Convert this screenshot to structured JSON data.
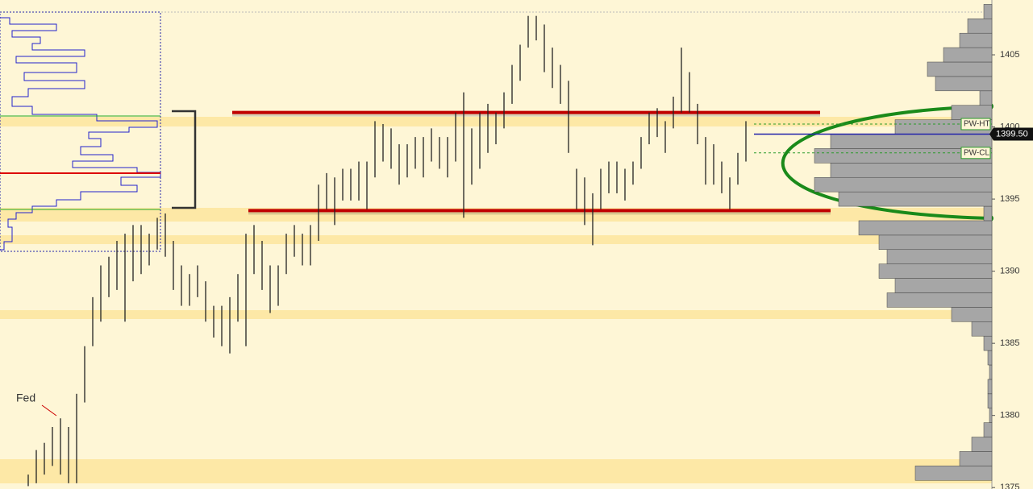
{
  "chart_data": {
    "type": "ohlc",
    "ylim": [
      1374.9,
      1408.8
    ],
    "yticks": [
      1375,
      1380,
      1385,
      1390,
      1395,
      1400,
      1405
    ],
    "last_price": {
      "value": 1399.5,
      "label": "1399.50"
    },
    "levels": [
      {
        "name": "PW-HT",
        "value": 1400.2
      },
      {
        "name": "PW-CL",
        "value": 1398.2
      }
    ],
    "range_lines": [
      {
        "value": 1401.0,
        "color": "#c00000"
      },
      {
        "value": 1394.2,
        "color": "#c00000"
      }
    ],
    "annotations": [
      {
        "text": "Fed"
      }
    ],
    "bar_color": "#222222",
    "high": [
      1375.9,
      1377.6,
      1378.1,
      1379.2,
      1379.8,
      1379.2,
      1381.5,
      1384.8,
      1388.2,
      1390.4,
      1391.0,
      1392.1,
      1392.6,
      1393.2,
      1393.2,
      1392.6,
      1393.7,
      1394.0,
      1392.1,
      1390.4,
      1389.8,
      1390.4,
      1389.3,
      1387.6,
      1387.6,
      1388.2,
      1389.8,
      1392.6,
      1393.2,
      1392.1,
      1390.4,
      1390.4,
      1392.6,
      1393.2,
      1392.6,
      1393.2,
      1396.0,
      1396.8,
      1396.5,
      1397.1,
      1397.1,
      1397.6,
      1397.6,
      1400.4,
      1400.2,
      1399.9,
      1398.8,
      1398.8,
      1399.3,
      1399.3,
      1399.9,
      1399.3,
      1399.3,
      1401.0,
      1402.4,
      1399.9,
      1401.0,
      1401.6,
      1401.0,
      1402.4,
      1404.3,
      1405.7,
      1407.7,
      1407.7,
      1407.1,
      1405.5,
      1404.3,
      1403.2,
      1397.1,
      1396.5,
      1395.4,
      1397.1,
      1397.6,
      1397.6,
      1397.1,
      1397.6,
      1399.3,
      1401.0,
      1401.3,
      1400.4,
      1402.1,
      1405.5,
      1403.8,
      1401.6,
      1399.3,
      1398.8,
      1397.6,
      1396.5,
      1398.2,
      1400.4
    ],
    "low": [
      1375.1,
      1375.3,
      1375.9,
      1376.5,
      1375.9,
      1375.3,
      1375.3,
      1380.9,
      1384.8,
      1386.5,
      1388.2,
      1388.7,
      1386.5,
      1389.3,
      1389.8,
      1390.4,
      1391.5,
      1391.0,
      1388.7,
      1387.6,
      1387.6,
      1388.2,
      1386.5,
      1385.4,
      1384.8,
      1384.3,
      1386.5,
      1384.8,
      1389.8,
      1388.7,
      1387.1,
      1387.6,
      1389.8,
      1391.0,
      1390.4,
      1390.4,
      1392.1,
      1394.3,
      1393.2,
      1394.9,
      1394.9,
      1394.9,
      1394.3,
      1396.5,
      1397.6,
      1397.1,
      1396.0,
      1396.5,
      1397.1,
      1396.5,
      1397.6,
      1397.1,
      1396.5,
      1397.6,
      1393.7,
      1396.0,
      1397.1,
      1398.2,
      1398.8,
      1399.9,
      1401.6,
      1403.2,
      1405.5,
      1406.0,
      1403.8,
      1402.7,
      1401.6,
      1398.2,
      1394.3,
      1393.2,
      1391.8,
      1394.3,
      1395.4,
      1395.4,
      1394.9,
      1396.0,
      1397.1,
      1398.8,
      1399.3,
      1398.2,
      1399.9,
      1401.0,
      1401.0,
      1398.8,
      1396.0,
      1396.0,
      1395.4,
      1394.3,
      1396.0,
      1397.6
    ],
    "volume_profile": {
      "color": "#a6a6a6",
      "prices": [
        1376,
        1377,
        1378,
        1379,
        1380,
        1381,
        1382,
        1383,
        1384,
        1385,
        1386,
        1387,
        1388,
        1389,
        1390,
        1391,
        1392,
        1393,
        1394,
        1395,
        1396,
        1397,
        1398,
        1399,
        1400,
        1401,
        1402,
        1403,
        1404,
        1405,
        1406,
        1407,
        1408
      ],
      "volumes": [
        95,
        40,
        25,
        10,
        3,
        5,
        5,
        3,
        5,
        10,
        25,
        50,
        130,
        120,
        140,
        130,
        140,
        165,
        10,
        190,
        220,
        200,
        220,
        200,
        120,
        50,
        15,
        70,
        80,
        60,
        40,
        30,
        10
      ]
    }
  }
}
